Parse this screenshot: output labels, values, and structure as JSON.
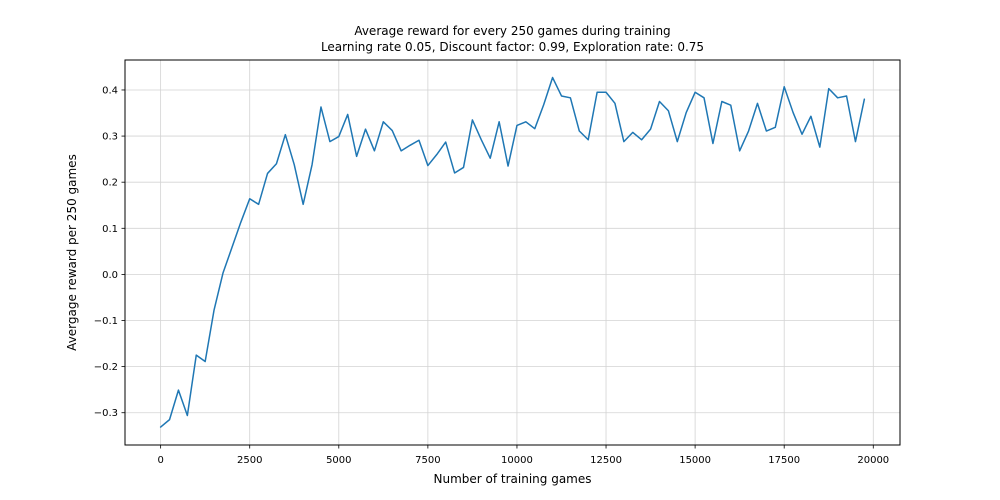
{
  "chart_data": {
    "type": "line",
    "title_line1": "Average reward for every 250 games during training",
    "title_line2": "Learning rate 0.05, Discount factor: 0.99, Exploration rate: 0.75",
    "xlabel": "Number of training games",
    "ylabel": "Avergage reward per 250 games",
    "xlim": [
      -1000,
      20750
    ],
    "ylim": [
      -0.37,
      0.465
    ],
    "xticks": [
      0,
      2500,
      5000,
      7500,
      10000,
      12500,
      15000,
      17500,
      20000
    ],
    "xtick_labels": [
      "0",
      "2500",
      "5000",
      "7500",
      "10000",
      "12500",
      "15000",
      "17500",
      "20000"
    ],
    "yticks": [
      -0.3,
      -0.2,
      -0.1,
      0.0,
      0.1,
      0.2,
      0.3,
      0.4
    ],
    "ytick_labels": [
      "−0.3",
      "−0.2",
      "−0.1",
      "0.0",
      "0.1",
      "0.2",
      "0.3",
      "0.4"
    ],
    "grid": true,
    "line_color": "#1f77b4",
    "series": [
      {
        "x": [
          0,
          250,
          500,
          750,
          1000,
          1250,
          1500,
          1750,
          2000,
          2250,
          2500,
          2750,
          3000,
          3250,
          3500,
          3750,
          4000,
          4250,
          4500,
          4750,
          5000,
          5250,
          5500,
          5750,
          6000,
          6250,
          6500,
          6750,
          7000,
          7250,
          7500,
          7750,
          8000,
          8250,
          8500,
          8750,
          9000,
          9250,
          9500,
          9750,
          10000,
          10250,
          10500,
          10750,
          11000,
          11250,
          11500,
          11750,
          12000,
          12250,
          12500,
          12750,
          13000,
          13250,
          13500,
          13750,
          14000,
          14250,
          14500,
          14750,
          15000,
          15250,
          15500,
          15750,
          16000,
          16250,
          16500,
          16750,
          17000,
          17250,
          17500,
          17750,
          18000,
          18250,
          18500,
          18750,
          19000,
          19250,
          19500,
          19750
        ],
        "y": [
          -0.331,
          -0.315,
          -0.251,
          -0.306,
          -0.175,
          -0.189,
          -0.077,
          0.003,
          0.058,
          0.113,
          0.164,
          0.152,
          0.219,
          0.24,
          0.303,
          0.238,
          0.152,
          0.238,
          0.363,
          0.288,
          0.299,
          0.347,
          0.256,
          0.315,
          0.268,
          0.331,
          0.312,
          0.268,
          0.28,
          0.291,
          0.236,
          0.26,
          0.287,
          0.22,
          0.232,
          0.335,
          0.292,
          0.252,
          0.331,
          0.235,
          0.323,
          0.331,
          0.316,
          0.368,
          0.427,
          0.387,
          0.383,
          0.311,
          0.292,
          0.395,
          0.395,
          0.371,
          0.288,
          0.308,
          0.292,
          0.315,
          0.375,
          0.355,
          0.288,
          0.351,
          0.395,
          0.383,
          0.284,
          0.375,
          0.367,
          0.268,
          0.311,
          0.371,
          0.311,
          0.319,
          0.407,
          0.351,
          0.304,
          0.343,
          0.276,
          0.403,
          0.383,
          0.387,
          0.288,
          0.38
        ]
      }
    ]
  }
}
